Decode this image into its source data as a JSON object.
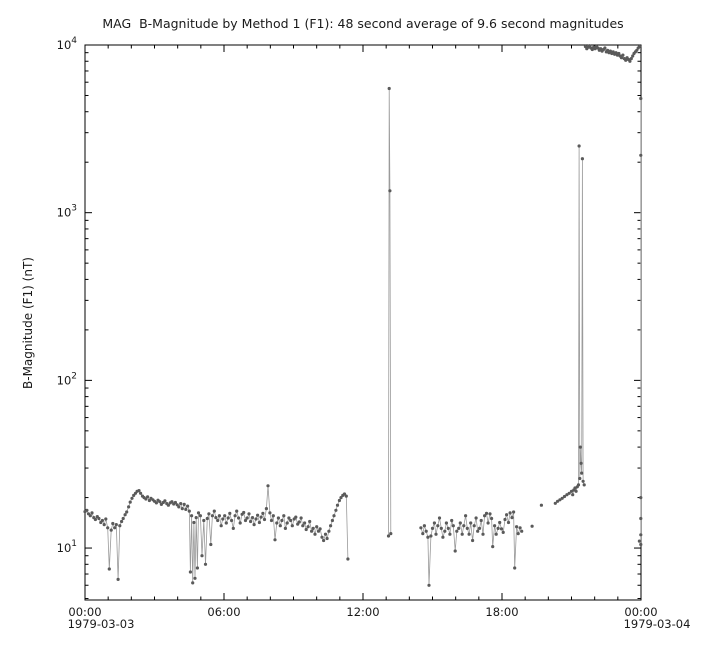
{
  "title": "MAG  B-Magnitude by Method 1 (F1): 48 second average of 9.6 second magnitudes",
  "chart_data": {
    "type": "scatter",
    "title": "MAG  B-Magnitude by Method 1 (F1): 48 second average of 9.6 second magnitudes",
    "ylabel": "B-Magnitude (F1) (nT)",
    "x_date_labels": [
      "1979-03-03",
      "1979-03-04"
    ],
    "xlim": [
      0,
      24
    ],
    "ylim": [
      4.9,
      10000
    ],
    "yscale": "log",
    "grid": false,
    "legend": "none",
    "axis_color": "#000000",
    "marker_color": "#5a5a5a",
    "line_color": "#9a9a9a",
    "x_ticks": [
      {
        "h": 0,
        "label": "00:00"
      },
      {
        "h": 6,
        "label": "06:00"
      },
      {
        "h": 12,
        "label": "12:00"
      },
      {
        "h": 18,
        "label": "18:00"
      },
      {
        "h": 24,
        "label": "00:00"
      }
    ],
    "y_ticks": [
      {
        "value": 10,
        "base": "10",
        "exp": "1"
      },
      {
        "value": 100,
        "base": "10",
        "exp": "2"
      },
      {
        "value": 1000,
        "base": "10",
        "exp": "3"
      },
      {
        "value": 10000,
        "base": "10",
        "exp": "4"
      }
    ],
    "x_units": "hours since 1979-03-03 00:00",
    "segments": [
      [
        [
          0.0,
          16.5
        ],
        [
          0.08,
          16.8
        ],
        [
          0.15,
          16.0
        ],
        [
          0.23,
          15.6
        ],
        [
          0.3,
          16.2
        ],
        [
          0.38,
          15.2
        ],
        [
          0.45,
          14.8
        ],
        [
          0.53,
          15.4
        ],
        [
          0.6,
          15.0
        ],
        [
          0.68,
          14.2
        ],
        [
          0.75,
          14.6
        ],
        [
          0.83,
          13.8
        ],
        [
          0.9,
          14.9
        ],
        [
          0.98,
          13.2
        ],
        [
          1.05,
          7.5
        ],
        [
          1.13,
          12.8
        ],
        [
          1.2,
          14.0
        ],
        [
          1.28,
          13.2
        ],
        [
          1.35,
          13.8
        ],
        [
          1.43,
          6.5
        ],
        [
          1.5,
          13.6
        ],
        [
          1.58,
          14.4
        ],
        [
          1.65,
          15.0
        ],
        [
          1.73,
          15.8
        ],
        [
          1.8,
          16.4
        ],
        [
          1.88,
          17.6
        ],
        [
          1.95,
          18.8
        ],
        [
          2.03,
          19.8
        ],
        [
          2.1,
          20.6
        ],
        [
          2.18,
          21.2
        ],
        [
          2.25,
          21.8
        ],
        [
          2.33,
          22.0
        ],
        [
          2.4,
          21.2
        ],
        [
          2.48,
          20.4
        ],
        [
          2.55,
          20.0
        ],
        [
          2.63,
          19.6
        ],
        [
          2.7,
          20.2
        ],
        [
          2.78,
          19.2
        ],
        [
          2.85,
          19.8
        ],
        [
          2.93,
          19.4
        ],
        [
          3.0,
          19.0
        ],
        [
          3.08,
          18.6
        ],
        [
          3.15,
          19.3
        ],
        [
          3.23,
          18.9
        ],
        [
          3.3,
          18.2
        ],
        [
          3.38,
          18.7
        ],
        [
          3.45,
          19.1
        ],
        [
          3.53,
          18.4
        ],
        [
          3.6,
          18.0
        ],
        [
          3.68,
          18.6
        ],
        [
          3.75,
          18.9
        ],
        [
          3.83,
          18.3
        ],
        [
          3.9,
          18.7
        ],
        [
          3.98,
          18.1
        ],
        [
          4.05,
          17.6
        ],
        [
          4.13,
          18.4
        ],
        [
          4.2,
          17.2
        ],
        [
          4.28,
          18.2
        ],
        [
          4.35,
          17.0
        ],
        [
          4.43,
          17.8
        ],
        [
          4.5,
          16.6
        ],
        [
          4.55,
          7.2
        ],
        [
          4.6,
          15.6
        ],
        [
          4.65,
          6.2
        ],
        [
          4.7,
          14.2
        ],
        [
          4.75,
          6.6
        ],
        [
          4.8,
          15.2
        ],
        [
          4.85,
          7.6
        ],
        [
          4.9,
          16.2
        ],
        [
          4.98,
          15.6
        ],
        [
          5.05,
          9.0
        ],
        [
          5.13,
          14.6
        ],
        [
          5.2,
          8.0
        ],
        [
          5.28,
          15.0
        ],
        [
          5.35,
          16.0
        ],
        [
          5.43,
          10.5
        ],
        [
          5.5,
          15.6
        ],
        [
          5.58,
          16.6
        ],
        [
          5.65,
          15.2
        ],
        [
          5.73,
          14.6
        ],
        [
          5.8,
          15.6
        ],
        [
          5.88,
          13.6
        ],
        [
          5.95,
          14.9
        ],
        [
          6.03,
          15.6
        ],
        [
          6.1,
          14.1
        ],
        [
          6.18,
          15.1
        ],
        [
          6.25,
          16.1
        ],
        [
          6.33,
          14.6
        ],
        [
          6.4,
          13.1
        ],
        [
          6.48,
          15.6
        ],
        [
          6.55,
          16.6
        ],
        [
          6.63,
          15.1
        ],
        [
          6.7,
          14.1
        ],
        [
          6.78,
          15.9
        ],
        [
          6.85,
          16.3
        ],
        [
          6.93,
          14.6
        ],
        [
          7.0,
          15.1
        ],
        [
          7.08,
          16.0
        ],
        [
          7.15,
          14.4
        ],
        [
          7.23,
          15.2
        ],
        [
          7.3,
          13.8
        ],
        [
          7.38,
          14.9
        ],
        [
          7.45,
          15.7
        ],
        [
          7.53,
          14.2
        ],
        [
          7.6,
          15.3
        ],
        [
          7.68,
          16.1
        ],
        [
          7.75,
          14.8
        ],
        [
          7.83,
          17.2
        ],
        [
          7.9,
          23.5
        ],
        [
          7.98,
          16.2
        ],
        [
          8.05,
          14.6
        ],
        [
          8.13,
          15.6
        ],
        [
          8.2,
          11.2
        ],
        [
          8.28,
          14.1
        ],
        [
          8.35,
          15.1
        ],
        [
          8.43,
          13.6
        ],
        [
          8.5,
          14.6
        ],
        [
          8.58,
          15.6
        ],
        [
          8.65,
          13.1
        ],
        [
          8.73,
          14.1
        ],
        [
          8.8,
          15.1
        ],
        [
          8.88,
          14.6
        ],
        [
          8.95,
          13.6
        ],
        [
          9.03,
          14.9
        ],
        [
          9.1,
          15.3
        ],
        [
          9.18,
          13.9
        ],
        [
          9.25,
          14.3
        ],
        [
          9.33,
          15.1
        ],
        [
          9.4,
          13.6
        ],
        [
          9.48,
          14.1
        ],
        [
          9.55,
          12.9
        ],
        [
          9.63,
          13.4
        ],
        [
          9.7,
          14.4
        ],
        [
          9.78,
          12.6
        ],
        [
          9.85,
          13.1
        ],
        [
          9.93,
          12.1
        ],
        [
          10.0,
          13.4
        ],
        [
          10.08,
          12.6
        ],
        [
          10.15,
          13.0
        ],
        [
          10.23,
          11.6
        ],
        [
          10.3,
          11.1
        ],
        [
          10.38,
          12.1
        ],
        [
          10.45,
          11.4
        ],
        [
          10.53,
          12.6
        ],
        [
          10.6,
          13.6
        ],
        [
          10.68,
          14.6
        ],
        [
          10.75,
          15.6
        ],
        [
          10.83,
          16.8
        ],
        [
          10.9,
          18.0
        ],
        [
          10.98,
          19.2
        ],
        [
          11.05,
          20.0
        ],
        [
          11.13,
          20.6
        ],
        [
          11.2,
          21.0
        ],
        [
          11.28,
          20.4
        ],
        [
          11.35,
          8.6
        ]
      ],
      [
        [
          13.1,
          11.8
        ],
        [
          13.13,
          5500
        ],
        [
          13.16,
          1350
        ],
        [
          13.2,
          12.2
        ]
      ],
      [
        [
          14.5,
          13.2
        ],
        [
          14.58,
          12.2
        ],
        [
          14.65,
          13.6
        ],
        [
          14.73,
          12.6
        ],
        [
          14.8,
          11.6
        ],
        [
          14.85,
          6.0
        ],
        [
          14.93,
          11.8
        ],
        [
          15.0,
          13.1
        ],
        [
          15.08,
          14.1
        ],
        [
          15.15,
          12.1
        ],
        [
          15.23,
          13.6
        ],
        [
          15.3,
          15.1
        ],
        [
          15.38,
          13.1
        ],
        [
          15.45,
          11.6
        ],
        [
          15.53,
          12.6
        ],
        [
          15.6,
          14.1
        ],
        [
          15.68,
          13.1
        ],
        [
          15.75,
          12.1
        ],
        [
          15.83,
          14.6
        ],
        [
          15.9,
          13.6
        ],
        [
          15.98,
          9.6
        ],
        [
          16.05,
          12.6
        ],
        [
          16.13,
          13.1
        ],
        [
          16.2,
          14.1
        ],
        [
          16.28,
          12.1
        ],
        [
          16.35,
          13.6
        ],
        [
          16.43,
          15.6
        ],
        [
          16.5,
          13.1
        ],
        [
          16.58,
          12.1
        ],
        [
          16.65,
          14.1
        ],
        [
          16.73,
          11.1
        ],
        [
          16.8,
          13.6
        ],
        [
          16.88,
          15.1
        ],
        [
          16.95,
          12.6
        ],
        [
          17.03,
          13.1
        ],
        [
          17.1,
          14.6
        ],
        [
          17.18,
          12.1
        ],
        [
          17.25,
          15.6
        ],
        [
          17.33,
          16.1
        ],
        [
          17.4,
          14.1
        ],
        [
          17.48,
          16.0
        ],
        [
          17.55,
          15.0
        ],
        [
          17.6,
          10.2
        ],
        [
          17.68,
          13.6
        ],
        [
          17.75,
          12.1
        ],
        [
          17.83,
          13.1
        ],
        [
          17.9,
          14.2
        ],
        [
          17.98,
          13.0
        ],
        [
          18.05,
          12.4
        ],
        [
          18.13,
          14.8
        ],
        [
          18.2,
          15.8
        ],
        [
          18.28,
          14.2
        ],
        [
          18.35,
          16.2
        ],
        [
          18.43,
          15.2
        ],
        [
          18.5,
          16.4
        ],
        [
          18.55,
          7.6
        ],
        [
          18.63,
          13.4
        ],
        [
          18.7,
          12.2
        ],
        [
          18.78,
          13.2
        ],
        [
          18.85,
          12.6
        ]
      ],
      [
        [
          19.3,
          13.5
        ]
      ],
      [
        [
          19.7,
          18.0
        ]
      ],
      [
        [
          20.3,
          18.5
        ],
        [
          20.4,
          19.0
        ],
        [
          20.5,
          19.4
        ],
        [
          20.6,
          19.8
        ],
        [
          20.7,
          20.3
        ],
        [
          20.8,
          20.8
        ],
        [
          20.9,
          21.2
        ],
        [
          21.0,
          21.8
        ],
        [
          21.05,
          20.8
        ],
        [
          21.1,
          22.2
        ],
        [
          21.15,
          22.8
        ],
        [
          21.2,
          21.8
        ],
        [
          21.25,
          23.2
        ],
        [
          21.3,
          23.8
        ],
        [
          21.33,
          2500
        ],
        [
          21.36,
          26.0
        ],
        [
          21.38,
          40.0
        ],
        [
          21.41,
          32.0
        ],
        [
          21.44,
          28.0
        ],
        [
          21.47,
          2100
        ],
        [
          21.5,
          25.0
        ],
        [
          21.55,
          23.8
        ]
      ],
      [
        [
          21.6,
          9800
        ],
        [
          21.66,
          9500
        ],
        [
          21.72,
          9700
        ],
        [
          21.78,
          9900
        ],
        [
          21.84,
          9600
        ],
        [
          21.9,
          9400
        ],
        [
          21.96,
          9700
        ],
        [
          22.02,
          9500
        ],
        [
          22.08,
          9800
        ],
        [
          22.14,
          9600
        ],
        [
          22.2,
          9300
        ],
        [
          22.26,
          9500
        ],
        [
          22.32,
          9200
        ],
        [
          22.38,
          9400
        ],
        [
          22.44,
          9600
        ],
        [
          22.5,
          9100
        ],
        [
          22.56,
          9300
        ],
        [
          22.62,
          9000
        ],
        [
          22.68,
          9200
        ],
        [
          22.74,
          8900
        ],
        [
          22.8,
          9100
        ],
        [
          22.86,
          8800
        ],
        [
          22.92,
          9000
        ],
        [
          22.98,
          8700
        ],
        [
          23.04,
          8900
        ],
        [
          23.1,
          8600
        ],
        [
          23.16,
          8400
        ],
        [
          23.22,
          8700
        ],
        [
          23.28,
          8300
        ],
        [
          23.34,
          8100
        ],
        [
          23.4,
          8400
        ],
        [
          23.46,
          8200
        ],
        [
          23.52,
          8000
        ],
        [
          23.58,
          8300
        ],
        [
          23.64,
          8600
        ],
        [
          23.7,
          8900
        ],
        [
          23.76,
          9100
        ],
        [
          23.82,
          9300
        ],
        [
          23.88,
          9600
        ],
        [
          23.94,
          9800
        ]
      ],
      [
        [
          23.99,
          4800
        ],
        [
          23.99,
          2200
        ],
        [
          23.99,
          20
        ],
        [
          23.99,
          15
        ],
        [
          23.99,
          12
        ],
        [
          23.99,
          10.5
        ]
      ],
      [
        [
          23.93,
          11.0
        ]
      ]
    ]
  }
}
